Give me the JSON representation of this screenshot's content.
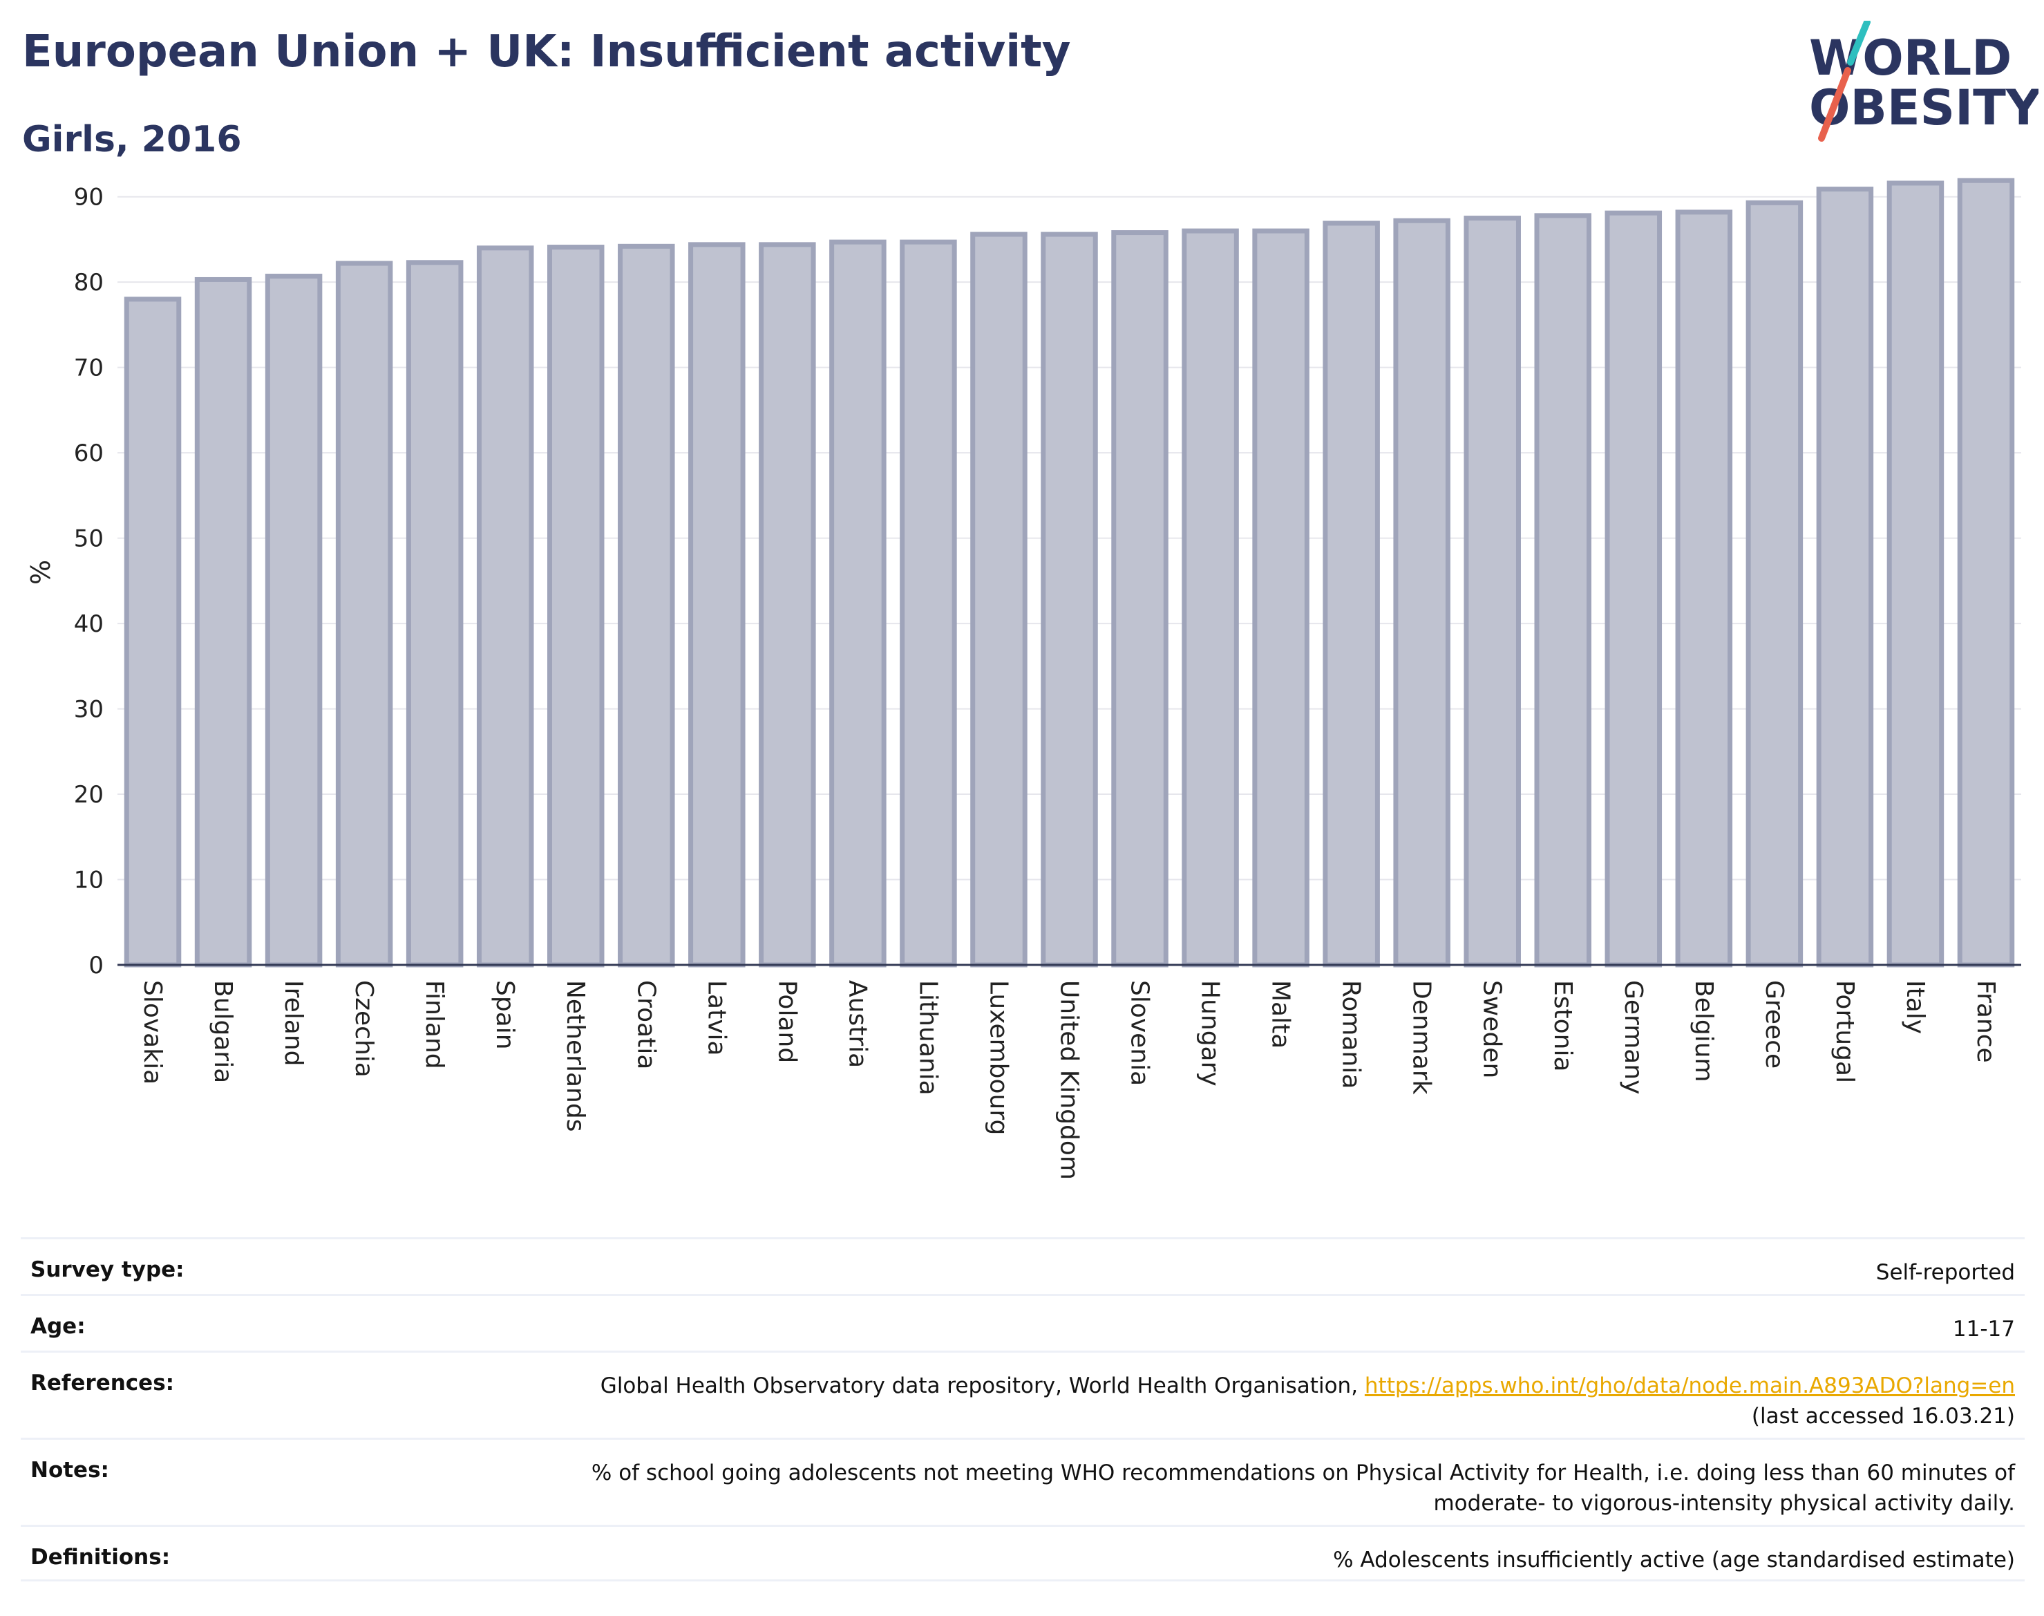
{
  "header": {
    "title": "European Union + UK: Insufficient activity",
    "subtitle": "Girls, 2016"
  },
  "logo": {
    "line1": "WORLD",
    "line2": "OBESITY",
    "accent_colors": [
      "#2ebfbf",
      "#e8614d"
    ],
    "text_color": "#2b3560"
  },
  "chart_data": {
    "type": "bar",
    "ylabel": "%",
    "ylim": [
      0,
      92
    ],
    "yticks": [
      0,
      10,
      20,
      30,
      40,
      50,
      60,
      70,
      80,
      90
    ],
    "grid": true,
    "bar_fill": "#bfc2d0",
    "bar_stroke": "#9fa4ba",
    "categories": [
      "Slovakia",
      "Bulgaria",
      "Ireland",
      "Czechia",
      "Finland",
      "Spain",
      "Netherlands",
      "Croatia",
      "Latvia",
      "Poland",
      "Austria",
      "Lithuania",
      "Luxembourg",
      "United Kingdom",
      "Slovenia",
      "Hungary",
      "Malta",
      "Romania",
      "Denmark",
      "Sweden",
      "Estonia",
      "Germany",
      "Belgium",
      "Greece",
      "Portugal",
      "Italy",
      "France"
    ],
    "values": [
      78.0,
      80.3,
      80.7,
      82.2,
      82.3,
      84.0,
      84.1,
      84.2,
      84.4,
      84.4,
      84.7,
      84.7,
      85.6,
      85.6,
      85.8,
      86.0,
      86.0,
      86.9,
      87.2,
      87.5,
      87.8,
      88.1,
      88.2,
      89.3,
      90.9,
      91.6,
      91.9
    ]
  },
  "info": {
    "survey_type": {
      "label": "Survey type:",
      "value": "Self-reported"
    },
    "age": {
      "label": "Age:",
      "value": "11-17"
    },
    "references": {
      "label": "References:",
      "text": "Global Health Observatory data repository, World Health Organisation, ",
      "link": "https://apps.who.int/gho/data/node.main.A893ADO?lang=en",
      "suffix": "(last accessed 16.03.21)"
    },
    "notes": {
      "label": "Notes:",
      "line1": "% of school going adolescents not meeting WHO recommendations on Physical Activity for Health, i.e. doing less than 60 minutes of",
      "line2": "moderate- to vigorous-intensity physical activity daily."
    },
    "definitions": {
      "label": "Definitions:",
      "value": "% Adolescents insufficiently active (age standardised estimate)"
    }
  }
}
